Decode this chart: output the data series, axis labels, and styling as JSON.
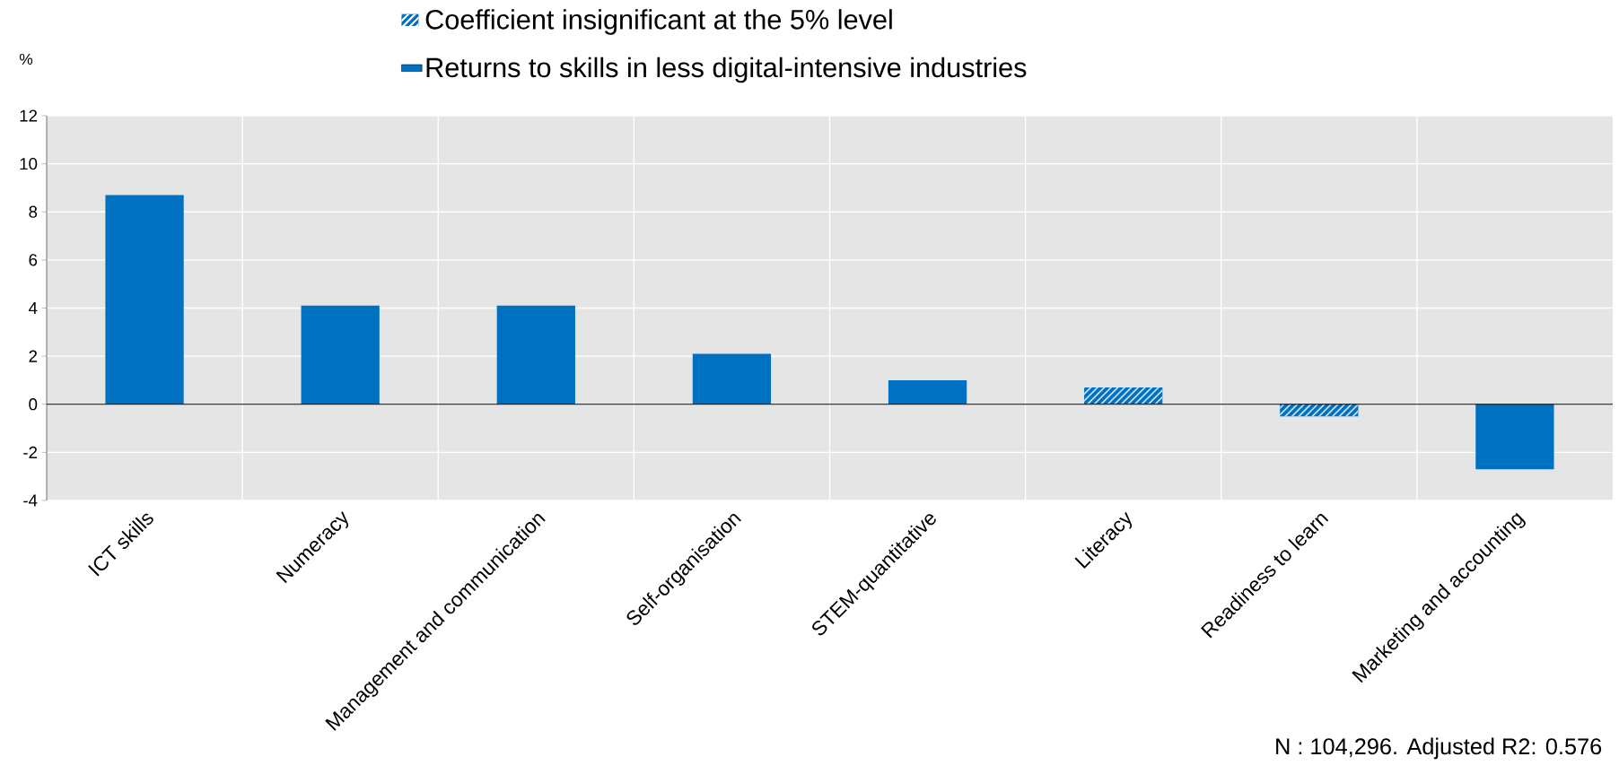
{
  "chart_data": {
    "type": "bar",
    "ylabel": "%",
    "categories": [
      "ICT skills",
      "Numeracy",
      "Management and communication",
      "Self-organisation",
      "STEM-quantitative",
      "Literacy",
      "Readiness to learn",
      "Marketing and accounting"
    ],
    "series": [
      {
        "name": "Coefficient insignificant at the 5% level",
        "color": "#0070c0",
        "values": [
          null,
          null,
          null,
          null,
          null,
          0.7,
          -0.5,
          null
        ]
      },
      {
        "name": "Returns to skills in less digital-intensive industries",
        "color": "#0070c0",
        "values": [
          8.7,
          4.1,
          4.1,
          2.1,
          1.0,
          null,
          null,
          -2.7
        ]
      }
    ],
    "ylim": [
      -4,
      12
    ],
    "yticks": [
      -4,
      -2,
      0,
      2,
      4,
      6,
      8,
      10,
      12
    ],
    "grid": true,
    "legend": "top",
    "annotations": [
      "N : 104,296. Adjusted R2: 0.576"
    ]
  }
}
